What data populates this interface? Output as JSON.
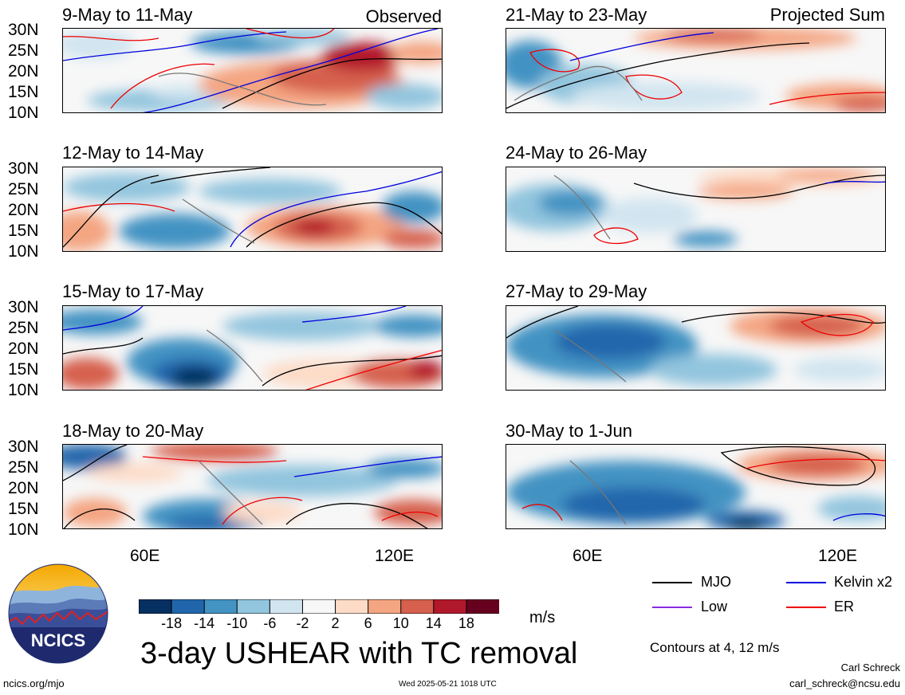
{
  "panels": [
    {
      "title": "9-May to 11-May",
      "corner": "Observed"
    },
    {
      "title": "21-May to 23-May",
      "corner": "Projected Sum"
    },
    {
      "title": "12-May to 14-May",
      "corner": ""
    },
    {
      "title": "24-May to 26-May",
      "corner": ""
    },
    {
      "title": "15-May to 17-May",
      "corner": ""
    },
    {
      "title": "27-May to 29-May",
      "corner": ""
    },
    {
      "title": "18-May to 20-May",
      "corner": ""
    },
    {
      "title": "30-May to 1-Jun",
      "corner": ""
    }
  ],
  "lat_ticks": [
    "30N",
    "25N",
    "20N",
    "15N",
    "10N"
  ],
  "lon_ticks": [
    "60E",
    "120E"
  ],
  "colorbar": {
    "labels": [
      "-18",
      "-14",
      "-10",
      "-6",
      "-2",
      "2",
      "6",
      "10",
      "14",
      "18"
    ],
    "colors": [
      "#053061",
      "#2166ac",
      "#4393c3",
      "#92c5de",
      "#d1e5f0",
      "#f7f7f7",
      "#fddbc7",
      "#f4a582",
      "#d6604d",
      "#b2182b",
      "#67001f"
    ],
    "units": "m/s"
  },
  "title": "3-day USHEAR with TC removal",
  "legend": {
    "items": [
      {
        "label": "MJO",
        "color": "#000000"
      },
      {
        "label": "Kelvin x2",
        "color": "#0000dd"
      },
      {
        "label": "Low",
        "color": "#8a2be2"
      },
      {
        "label": "ER",
        "color": "#ee0000"
      }
    ],
    "contours_note": "Contours at 4, 12 m/s"
  },
  "logo": {
    "text": "NCICS"
  },
  "footer": {
    "url": "ncics.org/mjo",
    "timestamp": "Wed 2025-05-21 1018 UTC",
    "author": "Carl Schreck",
    "email": "carl_schreck@ncsu.edu"
  }
}
